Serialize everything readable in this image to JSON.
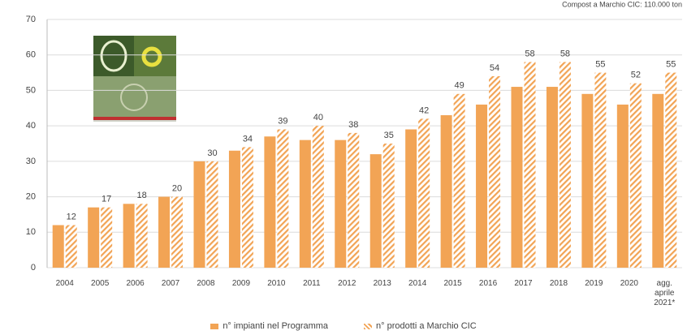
{
  "chart_data": {
    "type": "bar",
    "subtitle": "Compost a Marchio CIC: 110.000 ton",
    "categories": [
      "2004",
      "2005",
      "2006",
      "2007",
      "2008",
      "2009",
      "2010",
      "2011",
      "2012",
      "2013",
      "2014",
      "2015",
      "2016",
      "2017",
      "2018",
      "2019",
      "2020",
      "agg. aprile 2021*"
    ],
    "series": [
      {
        "name": "n° impianti nel Programma",
        "color": "#f2a455",
        "hatch": false,
        "values": [
          12,
          17,
          18,
          20,
          30,
          33,
          37,
          36,
          36,
          32,
          39,
          43,
          46,
          51,
          51,
          49,
          46,
          49
        ]
      },
      {
        "name": "n° prodotti a Marchio CIC",
        "color": "#f2a455",
        "hatch": true,
        "show_labels": true,
        "values": [
          12,
          17,
          18,
          20,
          30,
          34,
          39,
          40,
          38,
          35,
          42,
          49,
          54,
          58,
          58,
          55,
          52,
          55
        ]
      }
    ],
    "ylim": [
      0,
      70
    ],
    "yticks": [
      0,
      10,
      20,
      30,
      40,
      50,
      60,
      70
    ],
    "grid": true
  }
}
